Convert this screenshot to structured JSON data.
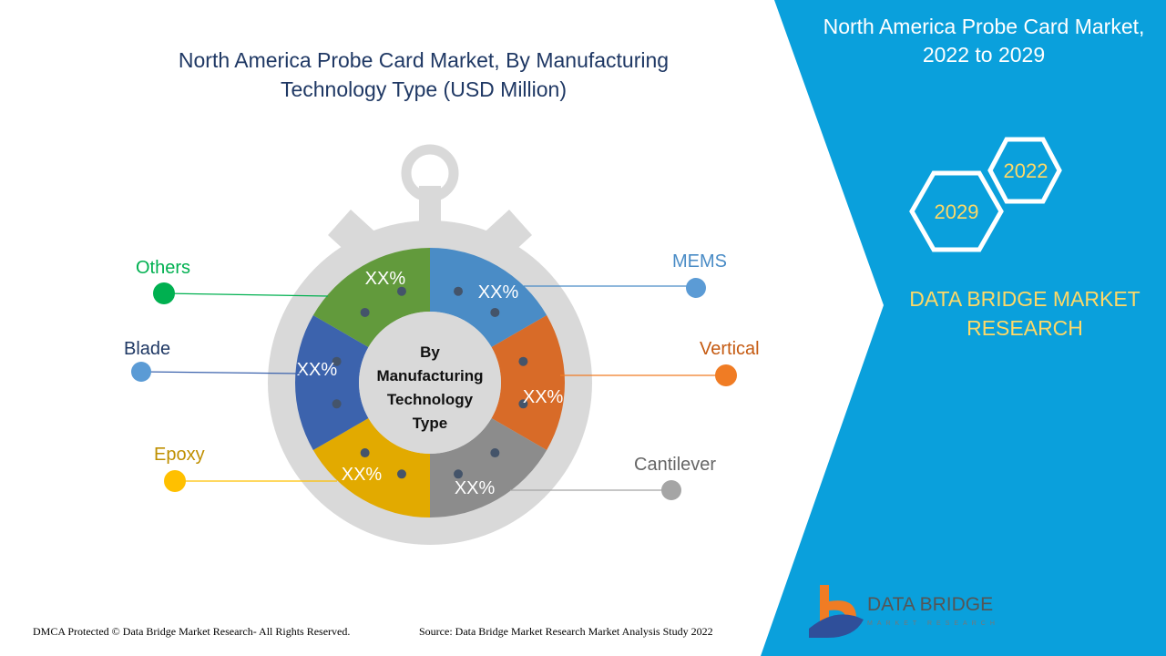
{
  "title": "North America Probe Card Market, By Manufacturing Technology Type (USD Million)",
  "center_label": [
    "By",
    "Manufacturing",
    "Technology",
    "Type"
  ],
  "segments": [
    {
      "name": "MEMS",
      "label": "XX%",
      "color": "#4a8cc6"
    },
    {
      "name": "Vertical",
      "label": "XX%",
      "color": "#d86b28"
    },
    {
      "name": "Cantilever",
      "label": "XX%",
      "color": "#8c8c8c"
    },
    {
      "name": "Epoxy",
      "label": "XX%",
      "color": "#e2aa00"
    },
    {
      "name": "Blade",
      "label": "XX%",
      "color": "#3c63ad"
    },
    {
      "name": "Others",
      "label": "XX%",
      "color": "#629a3c"
    }
  ],
  "legend": {
    "others": {
      "label": "Others",
      "color": "#00b050"
    },
    "blade": {
      "label": "Blade",
      "color": "#5b9bd5"
    },
    "epoxy": {
      "label": "Epoxy",
      "color": "#ffc000"
    },
    "mems": {
      "label": "MEMS",
      "color": "#5b9bd5"
    },
    "vertical": {
      "label": "Vertical",
      "color": "#f07c24"
    },
    "cantilever": {
      "label": "Cantilever",
      "color": "#a5a5a5"
    }
  },
  "panel": {
    "title": "North America Probe Card Market, 2022 to 2029",
    "year_a": "2022",
    "year_b": "2029",
    "brand": "DATA BRIDGE MARKET RESEARCH",
    "color": "#0aa0dc"
  },
  "logo": {
    "name": "DATA BRIDGE",
    "sub": "MARKET RESEARCH"
  },
  "footer": {
    "left": "DMCA Protected © Data Bridge Market Research- All Rights Reserved.",
    "right": "Source: Data Bridge Market Research Market Analysis Study 2022"
  }
}
